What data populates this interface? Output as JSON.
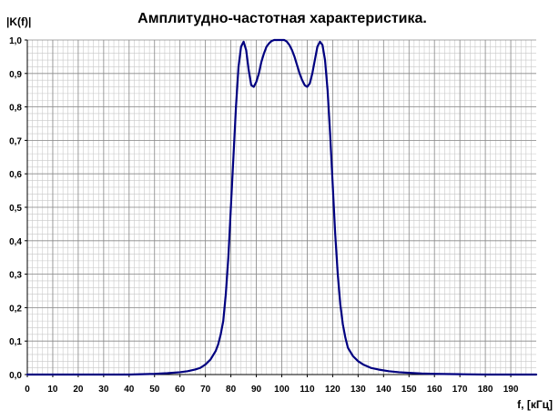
{
  "chart_data": {
    "type": "line",
    "title": "Амплитудно-частотная характеристика.",
    "xlabel": "f, [кГц]",
    "ylabel": "|K(f)|",
    "xlim": [
      0,
      200
    ],
    "ylim": [
      0,
      1.0
    ],
    "x_ticks": [
      0,
      10,
      20,
      30,
      40,
      50,
      60,
      70,
      80,
      90,
      100,
      110,
      120,
      130,
      140,
      150,
      160,
      170,
      180,
      190
    ],
    "x_tick_labels": [
      "0",
      "10",
      "20",
      "30",
      "40",
      "50",
      "60",
      "70",
      "80",
      "90",
      "100",
      "110",
      "120",
      "130",
      "140",
      "150",
      "160",
      "170",
      "180",
      "190"
    ],
    "y_ticks": [
      0,
      0.1,
      0.2,
      0.3,
      0.4,
      0.5,
      0.6,
      0.7,
      0.8,
      0.9,
      1.0
    ],
    "y_tick_labels": [
      "0,0",
      "0,1",
      "0,2",
      "0,3",
      "0,4",
      "0,5",
      "0,6",
      "0,7",
      "0,8",
      "0,9",
      "1,0"
    ],
    "grid": true,
    "minor_grid_step": [
      2,
      0.02
    ],
    "series": [
      {
        "color": "#000080",
        "x": [
          0,
          20,
          40,
          50,
          55,
          60,
          63,
          66,
          68,
          70,
          72,
          74,
          75,
          76,
          77,
          78,
          79,
          80,
          81,
          82,
          83,
          84,
          85,
          86,
          87,
          88,
          89,
          90,
          91,
          92,
          93,
          94,
          95,
          96,
          97,
          98,
          99,
          100,
          101,
          102,
          103,
          104,
          105,
          106,
          107,
          108,
          109,
          110,
          111,
          112,
          113,
          114,
          115,
          116,
          117,
          118,
          119,
          120,
          121,
          122,
          123,
          124,
          125,
          126,
          128,
          130,
          132,
          135,
          138,
          142,
          146,
          150,
          155,
          160,
          170,
          180,
          190,
          200
        ],
        "y": [
          0.0,
          0.0,
          0.0,
          0.002,
          0.004,
          0.007,
          0.01,
          0.015,
          0.02,
          0.03,
          0.045,
          0.07,
          0.09,
          0.12,
          0.16,
          0.24,
          0.35,
          0.5,
          0.65,
          0.8,
          0.92,
          0.98,
          0.995,
          0.97,
          0.91,
          0.865,
          0.86,
          0.875,
          0.9,
          0.935,
          0.96,
          0.98,
          0.99,
          0.997,
          1.0,
          1.0,
          1.0,
          1.0,
          1.0,
          0.995,
          0.985,
          0.97,
          0.95,
          0.925,
          0.9,
          0.88,
          0.865,
          0.86,
          0.87,
          0.9,
          0.94,
          0.98,
          0.995,
          0.985,
          0.94,
          0.85,
          0.72,
          0.57,
          0.42,
          0.3,
          0.21,
          0.15,
          0.11,
          0.08,
          0.055,
          0.04,
          0.03,
          0.02,
          0.015,
          0.01,
          0.007,
          0.005,
          0.003,
          0.002,
          0.001,
          0.0,
          0.0,
          0.0
        ]
      }
    ]
  }
}
